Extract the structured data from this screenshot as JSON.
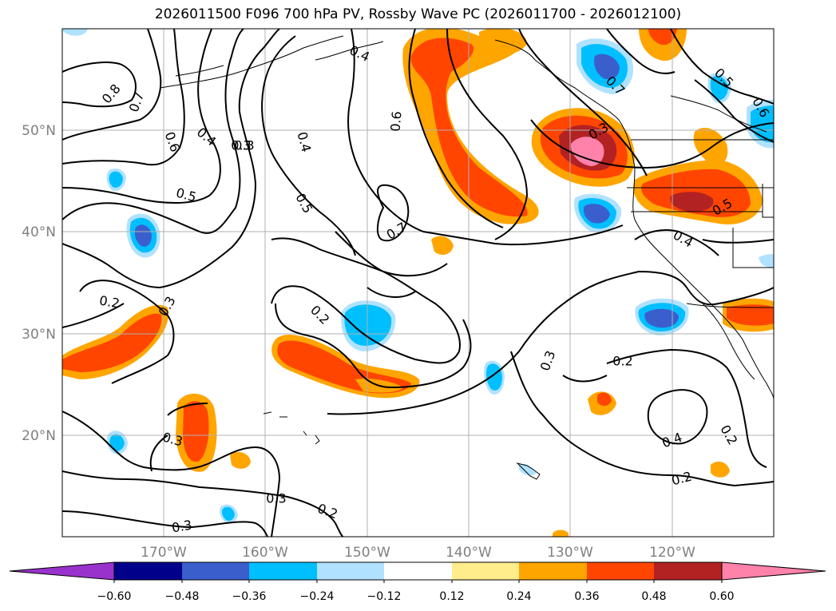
{
  "title": "2026011500 F096 700 hPa PV, Rossby Wave PC (2026011700 - 2026012100)",
  "map": {
    "lon_labels": [
      "170°W",
      "160°W",
      "150°W",
      "140°W",
      "130°W",
      "120°W"
    ],
    "lat_labels": [
      "50°N",
      "40°N",
      "30°N",
      "20°N"
    ],
    "axis_label_color": "#808080",
    "grid": true,
    "contour_labels": [
      "0.8",
      "0.7",
      "0.6",
      "0.4",
      "0.3",
      "0.5",
      "0.4",
      "0.5",
      "0.4",
      "0.6",
      "0.7",
      "0.7",
      "0.3",
      "0.5",
      "0.6",
      "0.5",
      "0.4",
      "0.2",
      "0.3",
      "0.2",
      "0.3",
      "0.3",
      "0.2",
      "0.3",
      "0.2",
      "0.3",
      "0.3",
      "0.2",
      "0.4",
      "0.2"
    ]
  },
  "colorbar": {
    "ticks": [
      "−0.60",
      "−0.48",
      "−0.36",
      "−0.24",
      "−0.12",
      "0.12",
      "0.24",
      "0.36",
      "0.48",
      "0.60"
    ],
    "colors": [
      "#9932cc",
      "#00008b",
      "#3a5fcd",
      "#00bfff",
      "#b0e2ff",
      "#ffffff",
      "#ffec8b",
      "#ffa500",
      "#ff4500",
      "#b22222",
      "#ff82ab"
    ]
  }
}
